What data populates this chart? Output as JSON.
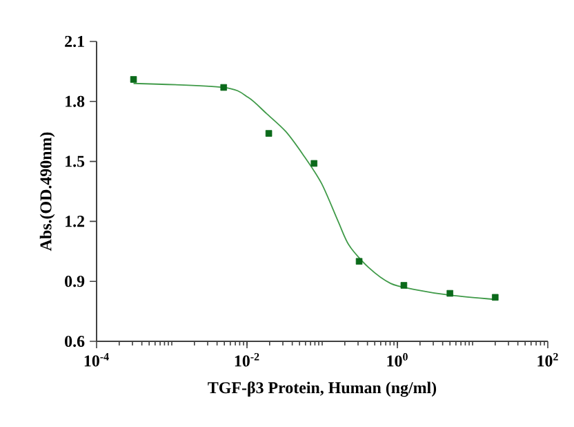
{
  "chart_data": {
    "type": "scatter",
    "xlabel": "TGF-β3 Protein, Human  (ng/ml)",
    "ylabel": "Abs.(OD.490nm)",
    "log": "x",
    "xlim": [
      0.0001,
      100
    ],
    "xticks": [
      {
        "value": 0.0001,
        "label": "10$^{-4}$"
      },
      {
        "value": 0.01,
        "label": "10$^{-2}$"
      },
      {
        "value": 1,
        "label": "10$^{0}$"
      },
      {
        "value": 100,
        "label": "10$^{2}$"
      }
    ],
    "ylim": [
      0.6,
      2.1
    ],
    "yticks": [
      0.6,
      0.9,
      1.2,
      1.5,
      1.8,
      2.1
    ],
    "series": [
      {
        "marker": "square",
        "color": "#0b6a1a",
        "x": [
          0.00031,
          0.0049,
          0.0195,
          0.078,
          0.31,
          1.22,
          5.0,
          20
        ],
        "values": [
          1.91,
          1.87,
          1.64,
          1.49,
          1.0,
          0.88,
          0.84,
          0.82
        ]
      },
      {
        "type": "line",
        "marker": "none",
        "color": "#3f9a48",
        "x": [
          0.00031,
          0.0049,
          0.0104,
          0.0181,
          0.0327,
          0.0565,
          0.098,
          0.163,
          0.228,
          0.412,
          0.81,
          1.66,
          5.2,
          19.2
        ],
        "values": [
          1.89,
          1.87,
          1.82,
          1.74,
          1.65,
          1.53,
          1.39,
          1.2,
          1.08,
          0.97,
          0.89,
          0.86,
          0.83,
          0.81
        ]
      }
    ]
  }
}
